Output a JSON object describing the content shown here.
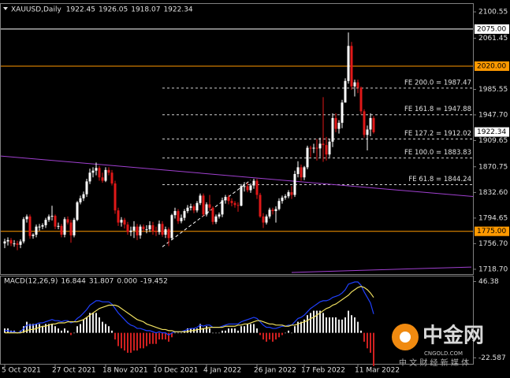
{
  "chart_data": {
    "type": "candlestick",
    "title": "XAUUSD,Daily",
    "quote": [
      1922.45,
      1926.05,
      1918.07,
      1922.34
    ],
    "up_color": "#ffffff",
    "down_color": "#e01818",
    "open": [
      1757,
      1760,
      1762,
      1757,
      1757,
      1755,
      1760,
      1793,
      1797,
      1768,
      1770,
      1782,
      1782,
      1784,
      1792,
      1797,
      1798,
      1782,
      1783,
      1770,
      1793,
      1788,
      1769,
      1792,
      1818,
      1824,
      1830,
      1849,
      1862,
      1865,
      1869,
      1855,
      1850,
      1866,
      1862,
      1846,
      1806,
      1788,
      1792,
      1785,
      1774,
      1776,
      1782,
      1769,
      1782,
      1778,
      1778,
      1784,
      1775,
      1774,
      1786,
      1770,
      1778,
      1765,
      1799,
      1805,
      1790,
      1795,
      1805,
      1810,
      1812,
      1806,
      1817,
      1828,
      1800,
      1815,
      1810,
      1789,
      1797,
      1800,
      1821,
      1826,
      1820,
      1817,
      1814,
      1813,
      1842,
      1842,
      1836,
      1843,
      1850,
      1829,
      1797,
      1788,
      1797,
      1807,
      1805,
      1808,
      1820,
      1825,
      1827,
      1833,
      1829,
      1860,
      1870,
      1855,
      1870,
      1899,
      1898,
      1899,
      1898,
      1905,
      1903,
      1889,
      1908,
      1943,
      1927,
      1936,
      1966,
      1998,
      2050,
      1990,
      1996,
      1988,
      1953,
      1918,
      1926,
      1943
    ],
    "high": [
      1764,
      1766,
      1765,
      1762,
      1761,
      1763,
      1796,
      1800,
      1800,
      1772,
      1785,
      1786,
      1787,
      1795,
      1800,
      1813,
      1800,
      1788,
      1786,
      1796,
      1797,
      1792,
      1795,
      1820,
      1828,
      1834,
      1853,
      1868,
      1870,
      1877,
      1872,
      1862,
      1870,
      1870,
      1866,
      1850,
      1810,
      1796,
      1795,
      1789,
      1782,
      1790,
      1786,
      1785,
      1785,
      1784,
      1790,
      1789,
      1782,
      1791,
      1790,
      1782,
      1781,
      1801,
      1810,
      1808,
      1800,
      1808,
      1814,
      1816,
      1815,
      1820,
      1831,
      1831,
      1818,
      1829,
      1812,
      1800,
      1803,
      1825,
      1829,
      1829,
      1824,
      1820,
      1818,
      1845,
      1848,
      1847,
      1846,
      1853,
      1853,
      1832,
      1802,
      1800,
      1810,
      1810,
      1812,
      1824,
      1828,
      1830,
      1836,
      1842,
      1865,
      1879,
      1874,
      1872,
      1902,
      1902,
      1905,
      1912,
      1914,
      1974,
      1915,
      1912,
      1950,
      1950,
      1940,
      1970,
      2002,
      2070,
      2056,
      2000,
      2000,
      1990,
      1956,
      1932,
      1950,
      1946
    ],
    "low": [
      1750,
      1754,
      1753,
      1752,
      1747,
      1750,
      1757,
      1788,
      1764,
      1764,
      1766,
      1776,
      1778,
      1780,
      1789,
      1791,
      1778,
      1778,
      1766,
      1766,
      1785,
      1758,
      1766,
      1790,
      1815,
      1820,
      1826,
      1845,
      1855,
      1858,
      1850,
      1847,
      1848,
      1858,
      1843,
      1801,
      1783,
      1782,
      1779,
      1770,
      1768,
      1765,
      1762,
      1764,
      1774,
      1772,
      1774,
      1770,
      1768,
      1770,
      1767,
      1765,
      1753,
      1762,
      1794,
      1786,
      1787,
      1791,
      1802,
      1806,
      1802,
      1803,
      1814,
      1797,
      1797,
      1805,
      1785,
      1786,
      1794,
      1796,
      1816,
      1815,
      1812,
      1810,
      1804,
      1812,
      1834,
      1833,
      1832,
      1838,
      1823,
      1795,
      1780,
      1785,
      1794,
      1800,
      1788,
      1806,
      1816,
      1822,
      1824,
      1823,
      1826,
      1855,
      1850,
      1851,
      1867,
      1885,
      1891,
      1880,
      1885,
      1878,
      1880,
      1885,
      1900,
      1922,
      1920,
      1928,
      1966,
      1994,
      1985,
      1975,
      1980,
      1948,
      1914,
      1895,
      1916,
      1920
    ],
    "close": [
      1760,
      1762,
      1757,
      1757,
      1755,
      1760,
      1793,
      1797,
      1768,
      1770,
      1782,
      1782,
      1784,
      1792,
      1797,
      1798,
      1782,
      1783,
      1770,
      1793,
      1788,
      1769,
      1792,
      1818,
      1824,
      1830,
      1849,
      1862,
      1865,
      1869,
      1855,
      1850,
      1866,
      1862,
      1846,
      1806,
      1788,
      1792,
      1785,
      1774,
      1776,
      1782,
      1769,
      1782,
      1778,
      1778,
      1784,
      1775,
      1774,
      1786,
      1770,
      1778,
      1765,
      1799,
      1805,
      1790,
      1795,
      1805,
      1810,
      1812,
      1806,
      1817,
      1828,
      1800,
      1815,
      1810,
      1789,
      1797,
      1800,
      1821,
      1826,
      1820,
      1817,
      1814,
      1813,
      1842,
      1842,
      1836,
      1843,
      1850,
      1829,
      1797,
      1788,
      1797,
      1807,
      1805,
      1808,
      1820,
      1825,
      1827,
      1833,
      1829,
      1860,
      1870,
      1855,
      1870,
      1899,
      1898,
      1899,
      1898,
      1905,
      1903,
      1889,
      1908,
      1943,
      1927,
      1936,
      1966,
      1998,
      2050,
      1990,
      1996,
      1988,
      1953,
      1918,
      1926,
      1943,
      1922
    ],
    "ylim": [
      1711.6,
      2112.3
    ],
    "yticks": [
      2100.55,
      2061.45,
      1985.55,
      {
        "value": 1947.7,
        "label": "1947.70"
      },
      1909.65,
      1870.75,
      {
        "value": 1832.6,
        "label": "1832.60"
      },
      1794.65,
      {
        "value": 1756.7,
        "label": "1756.70"
      },
      {
        "value": 1718.7,
        "label": "1718.70"
      }
    ],
    "xticks": [
      {
        "value": 0,
        "label": "5 Oct 2021"
      },
      {
        "value": 16,
        "label": "27 Oct 2021"
      },
      {
        "value": 32,
        "label": "18 Nov 2021"
      },
      {
        "value": 48,
        "label": "10 Dec 2021"
      },
      {
        "value": 64,
        "label": "4 Jan 2022"
      },
      {
        "value": 80,
        "label": "26 Jan 2022"
      },
      {
        "value": 95,
        "label": "17 Feb 2022"
      },
      {
        "value": 112,
        "label": "11 Mar 2022"
      }
    ],
    "levels": [
      {
        "value": 2075,
        "label": "2075.00",
        "color": "#ffffff"
      },
      {
        "value": 2020,
        "label": "2020.00",
        "color": "#ff9900"
      },
      {
        "value": 1775,
        "label": "1775.00",
        "color": "#ff9900"
      }
    ],
    "last_price": {
      "value": 1922.34,
      "label": "1922.34"
    },
    "fib_levels": [
      {
        "value": 1987.47,
        "label": "FE 200.0 = 1987.47"
      },
      {
        "value": 1947.88,
        "label": "FE 161.8 = 1947.88"
      },
      {
        "value": 1912.02,
        "label": "FE 127.2 = 1912.02"
      },
      {
        "value": 1883.83,
        "label": "FE 100.0 = 1883.83"
      },
      {
        "value": 1844.24,
        "label": "FE 61.8 = 1844.24"
      }
    ],
    "trendlines": [
      {
        "color": "#a040d0",
        "x": [
          -2,
          160
        ],
        "y": [
          1887,
          1822
        ]
      },
      {
        "color": "#a040d0",
        "x": [
          91,
          148
        ],
        "y": [
          1714,
          1722
        ]
      },
      {
        "color": "#ffffff",
        "dashed": true,
        "x": [
          50,
          78
        ],
        "y": [
          1752,
          1851
        ]
      }
    ],
    "macd": {
      "title": "MACD(12,26,9)",
      "readout": [
        16.844,
        31.807,
        {
          "value": 0,
          "label": "0.000"
        },
        -19.452
      ],
      "ylim": [
        -28,
        51
      ],
      "yticks": [
        46.38,
        -22.587
      ],
      "main_color": "#2040ff",
      "signal_color": "#f0e060",
      "pos_color": "#e8e8e8",
      "neg_color": "#d02020",
      "histogram": [
        4,
        4,
        2,
        2,
        0,
        2,
        6,
        10,
        8,
        8,
        8,
        8,
        6,
        8,
        8,
        8,
        6,
        4,
        2,
        4,
        2,
        -2,
        0,
        6,
        8,
        12,
        14,
        18,
        18,
        18,
        14,
        10,
        8,
        6,
        2,
        -6,
        -12,
        -14,
        -16,
        -18,
        -18,
        -16,
        -16,
        -14,
        -14,
        -12,
        -10,
        -10,
        -10,
        -6,
        -6,
        -6,
        -8,
        -4,
        0,
        0,
        0,
        2,
        4,
        4,
        4,
        4,
        8,
        4,
        6,
        4,
        0,
        0,
        0,
        2,
        2,
        4,
        4,
        4,
        2,
        6,
        6,
        8,
        8,
        8,
        4,
        -2,
        -6,
        -8,
        -6,
        -8,
        -6,
        -4,
        -2,
        0,
        2,
        0,
        6,
        10,
        10,
        12,
        16,
        18,
        20,
        20,
        20,
        18,
        14,
        14,
        14,
        14,
        12,
        12,
        14,
        20,
        16,
        14,
        10,
        2,
        -8,
        -14,
        -18,
        -30
      ],
      "main": [
        2,
        2,
        1,
        1,
        0,
        1,
        4,
        7,
        7,
        7,
        8,
        9,
        9,
        10,
        11,
        12,
        11,
        11,
        10,
        11,
        11,
        9,
        10,
        13,
        15,
        18,
        21,
        25,
        27,
        29,
        29,
        28,
        28,
        28,
        26,
        22,
        18,
        15,
        12,
        9,
        7,
        6,
        4,
        4,
        3,
        2,
        2,
        1,
        0,
        1,
        0,
        0,
        -2,
        0,
        1,
        1,
        1,
        2,
        3,
        4,
        4,
        5,
        7,
        6,
        7,
        7,
        5,
        5,
        5,
        6,
        7,
        8,
        8,
        8,
        8,
        10,
        11,
        12,
        13,
        14,
        13,
        10,
        7,
        5,
        5,
        4,
        4,
        5,
        6,
        6,
        7,
        7,
        10,
        13,
        14,
        16,
        19,
        22,
        24,
        26,
        28,
        29,
        29,
        30,
        32,
        33,
        34,
        36,
        39,
        44,
        45,
        46,
        46,
        43,
        37,
        32,
        27,
        17
      ],
      "signal": [
        0,
        0,
        0,
        0,
        0,
        0,
        1,
        2,
        3,
        3,
        4,
        5,
        6,
        6,
        7,
        8,
        8,
        9,
        9,
        9,
        10,
        10,
        10,
        10,
        11,
        12,
        14,
        16,
        18,
        20,
        22,
        23,
        24,
        25,
        25,
        25,
        24,
        22,
        20,
        18,
        16,
        14,
        12,
        11,
        10,
        8,
        7,
        6,
        5,
        4,
        3,
        3,
        2,
        2,
        1,
        1,
        1,
        1,
        1,
        2,
        2,
        3,
        3,
        4,
        4,
        5,
        5,
        5,
        5,
        5,
        6,
        6,
        6,
        6,
        7,
        7,
        8,
        8,
        9,
        10,
        11,
        11,
        10,
        9,
        8,
        8,
        7,
        7,
        7,
        6,
        6,
        7,
        7,
        8,
        9,
        10,
        11,
        13,
        14,
        16,
        18,
        20,
        22,
        23,
        25,
        26,
        28,
        30,
        32,
        34,
        37,
        39,
        41,
        42,
        41,
        39,
        36,
        32
      ]
    },
    "watermark": {
      "brand": "中金网",
      "site": "CNGOLD.COM",
      "slogan": "中 文 财 经 新 媒 体"
    }
  }
}
